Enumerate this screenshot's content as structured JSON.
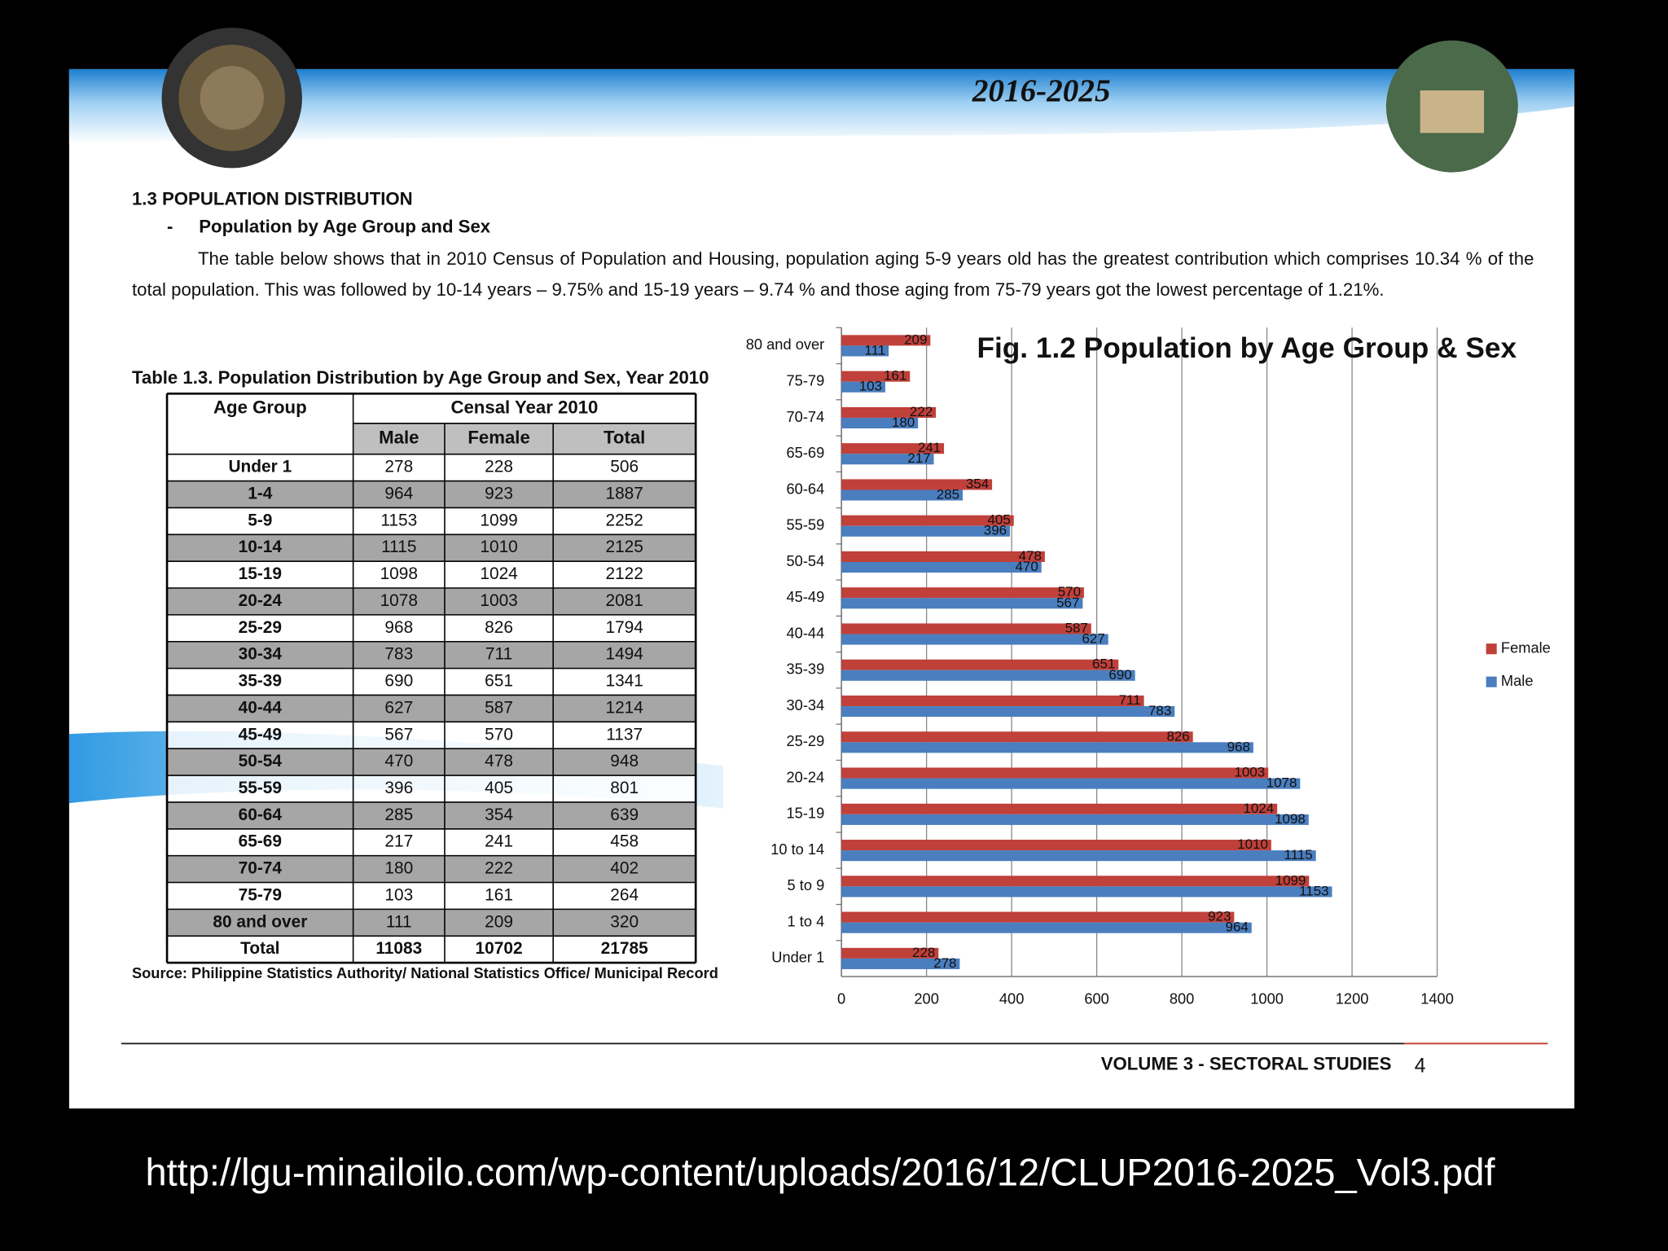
{
  "header": {
    "years": "2016-2025"
  },
  "section": {
    "heading": "1.3 POPULATION DISTRIBUTION",
    "bullet": "-",
    "subheading": "Population by Age Group and Sex",
    "paragraph": "The table below shows that in 2010 Census of Population and Housing, population aging 5-9 years old has the greatest contribution which comprises 10.34 % of the total population. This was followed by 10-14 years – 9.75% and 15-19 years – 9.74 % and those aging from 75-79 years got the lowest percentage of 1.21%."
  },
  "table": {
    "caption": "Table 1.3. Population Distribution by Age Group and Sex, Year 2010",
    "header": [
      "Age Group",
      "Censal Year 2010"
    ],
    "subheader": [
      "Male",
      "Female",
      "Total"
    ],
    "rows": [
      [
        "Under 1",
        278,
        228,
        506
      ],
      [
        "1-4",
        964,
        923,
        1887
      ],
      [
        "5-9",
        1153,
        1099,
        2252
      ],
      [
        "10-14",
        1115,
        1010,
        2125
      ],
      [
        "15-19",
        1098,
        1024,
        2122
      ],
      [
        "20-24",
        1078,
        1003,
        2081
      ],
      [
        "25-29",
        968,
        826,
        1794
      ],
      [
        "30-34",
        783,
        711,
        1494
      ],
      [
        "35-39",
        690,
        651,
        1341
      ],
      [
        "40-44",
        627,
        587,
        1214
      ],
      [
        "45-49",
        567,
        570,
        1137
      ],
      [
        "50-54",
        470,
        478,
        948
      ],
      [
        "55-59",
        396,
        405,
        801
      ],
      [
        "60-64",
        285,
        354,
        639
      ],
      [
        "65-69",
        217,
        241,
        458
      ],
      [
        "70-74",
        180,
        222,
        402
      ],
      [
        "75-79",
        103,
        161,
        264
      ],
      [
        "80 and over",
        111,
        209,
        320
      ],
      [
        "Total",
        11083,
        10702,
        21785
      ]
    ],
    "source": "Source: Philippine Statistics Authority/ National Statistics Office/ Municipal Record"
  },
  "chart_data": {
    "type": "hbar",
    "title": "Fig. 1.2 Population by Age Group & Sex",
    "categories": [
      "80 and over",
      "75-79",
      "70-74",
      "65-69",
      "60-64",
      "55-59",
      "50-54",
      "45-49",
      "40-44",
      "35-39",
      "30-34",
      "25-29",
      "20-24",
      "15-19",
      "10 to 14",
      "5 to 9",
      "1 to 4",
      "Under 1"
    ],
    "series": [
      {
        "name": "Female",
        "color": "#c0403a",
        "values": [
          209,
          161,
          222,
          241,
          354,
          405,
          478,
          570,
          587,
          651,
          711,
          826,
          1003,
          1024,
          1010,
          1099,
          923,
          228
        ]
      },
      {
        "name": "Male",
        "color": "#4a7ebf",
        "values": [
          111,
          103,
          180,
          217,
          285,
          396,
          470,
          567,
          627,
          690,
          783,
          968,
          1078,
          1098,
          1115,
          1153,
          964,
          278
        ]
      }
    ],
    "xlim": [
      0,
      1400
    ],
    "xticks": [
      0,
      200,
      400,
      600,
      800,
      1000,
      1200,
      1400
    ],
    "grid": true,
    "legend": "right"
  },
  "footer": {
    "volume": "VOLUME 3 - SECTORAL STUDIES",
    "page": "4"
  },
  "url": "http://lgu-minailoilo.com/wp-content/uploads/2016/12/CLUP2016-2025_Vol3.pdf"
}
